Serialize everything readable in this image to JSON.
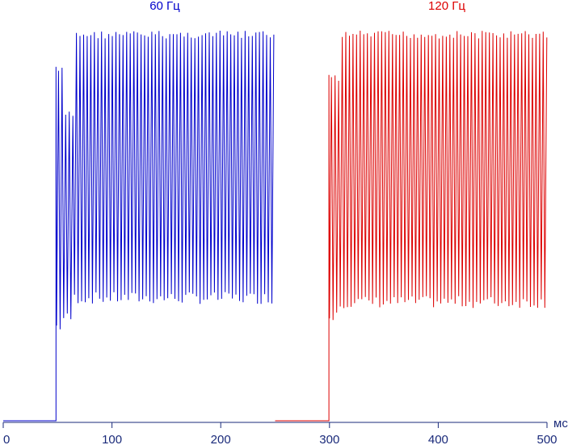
{
  "chart_data": {
    "type": "line",
    "xlabel": "мс",
    "ylabel": "",
    "xlim": [
      0,
      500
    ],
    "ylim": [
      0,
      1
    ],
    "x_ticks": [
      0,
      100,
      200,
      300,
      400,
      500
    ],
    "grid": false,
    "series": [
      {
        "name": "60 Гц",
        "color": "#0000cc",
        "x_start": 0,
        "x_end": 250,
        "flat_until": 48.5,
        "flat_level": 0.0,
        "pulse_period_ms": 3.3,
        "initial": {
          "until": 65,
          "high": 0.77,
          "low": 0.24,
          "spike_high": 0.88,
          "spike_low": 0.22
        },
        "steady": {
          "high": 0.97,
          "low": 0.29
        }
      },
      {
        "name": "120 Гц",
        "color": "#dd0000",
        "x_start": 250,
        "x_end": 500,
        "flat_until": 299.5,
        "flat_level": 0.0,
        "pulse_period_ms": 3.3,
        "initial": {
          "until": 308,
          "high": 0.85,
          "low": 0.26,
          "spike_high": 0.86,
          "spike_low": 0.24
        },
        "steady": {
          "high": 0.97,
          "low": 0.28
        }
      }
    ]
  }
}
